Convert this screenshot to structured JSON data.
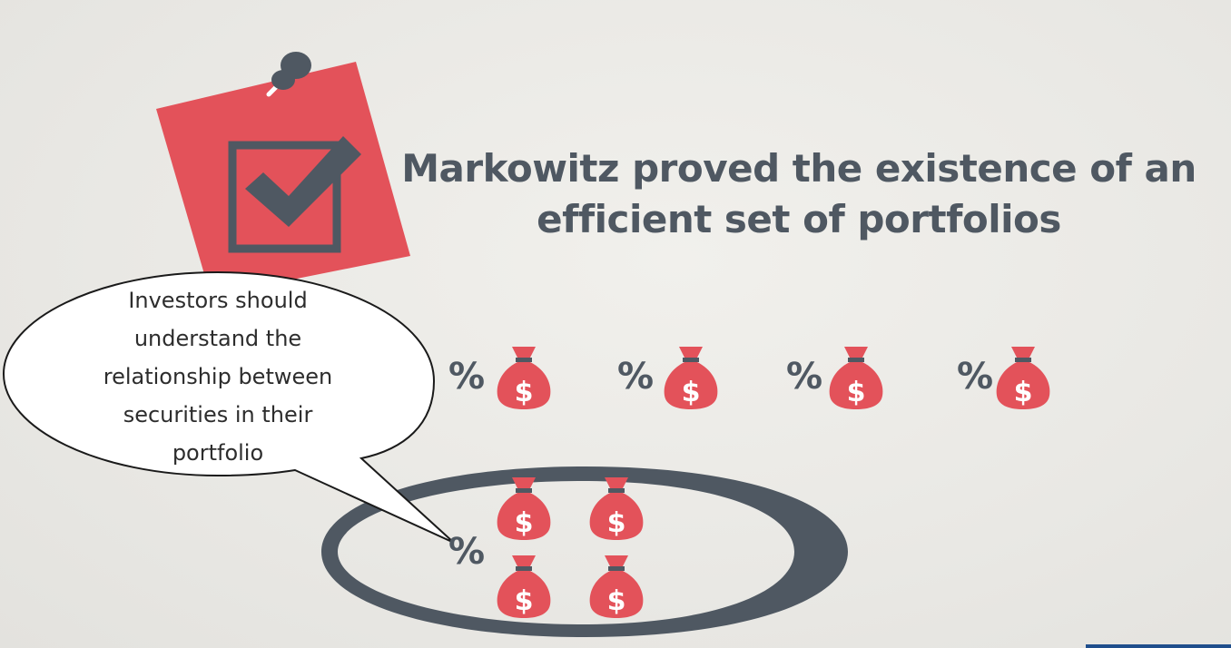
{
  "title": {
    "line1": "Markowitz proved the existence of an",
    "line2": "efficient set of portfolios"
  },
  "speech_bubble": {
    "line1": "Investors should",
    "line2": "understand the",
    "line3": "relationship between",
    "line4": "securities in their",
    "line5": "portfolio"
  },
  "symbol": "%",
  "bag_symbol": "$",
  "icons": {
    "note": "sticky-note-checkbox-icon",
    "pin": "push-pin-icon",
    "bag": "money-bag-icon",
    "ring": "ellipse-ring"
  },
  "colors": {
    "accent_red": "#e3525a",
    "slate": "#4f5862",
    "background": "#ecebe7"
  }
}
